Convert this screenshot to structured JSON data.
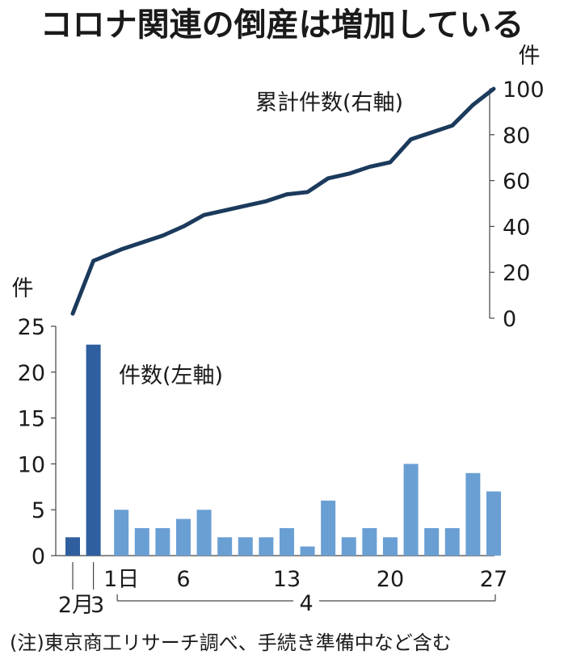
{
  "title": "コロナ関連の倒産は増加している",
  "note": "(注)東京商工リサーチ調べ、手続き準備中など含む",
  "colors": {
    "bar_feb": "#2f5f9e",
    "bar_apr": "#6a9fd4",
    "line": "#1b3a5c",
    "axis": "#444444"
  },
  "chart_data": {
    "type": "bar+line",
    "dates": [
      "2/2",
      "2/3",
      "4/1",
      "4/2",
      "4/3",
      "4/6",
      "4/7",
      "4/8",
      "4/9",
      "4/10",
      "4/13",
      "4/14",
      "4/15",
      "4/16",
      "4/17",
      "4/20",
      "4/21",
      "4/22",
      "4/23",
      "4/24",
      "4/27"
    ],
    "series": [
      {
        "name": "件数(左軸)",
        "axis": "left",
        "type": "bar",
        "values": [
          2,
          23,
          5,
          3,
          3,
          4,
          5,
          2,
          2,
          2,
          3,
          1,
          6,
          2,
          3,
          2,
          10,
          3,
          3,
          9,
          7
        ]
      },
      {
        "name": "累計件数(右軸)",
        "axis": "right",
        "type": "line",
        "values": [
          2,
          25,
          30,
          33,
          36,
          40,
          45,
          47,
          49,
          51,
          54,
          55,
          61,
          63,
          66,
          68,
          78,
          81,
          84,
          93,
          100
        ]
      }
    ],
    "left_axis": {
      "unit": "件",
      "ylim": [
        0,
        25
      ],
      "ticks": [
        "0",
        "5",
        "10",
        "15",
        "20",
        "25"
      ]
    },
    "right_axis": {
      "unit": "件",
      "ylim": [
        0,
        100
      ],
      "ticks": [
        "0",
        "20",
        "40",
        "60",
        "80",
        "100"
      ]
    },
    "x_tick_labels": [
      {
        "index": 2,
        "label": "1日"
      },
      {
        "index": 5,
        "label": "6"
      },
      {
        "index": 10,
        "label": "13"
      },
      {
        "index": 15,
        "label": "20"
      },
      {
        "index": 20,
        "label": "27"
      }
    ],
    "month_labels": {
      "feb": "2月",
      "feb_day": "3",
      "apr": "4"
    }
  }
}
